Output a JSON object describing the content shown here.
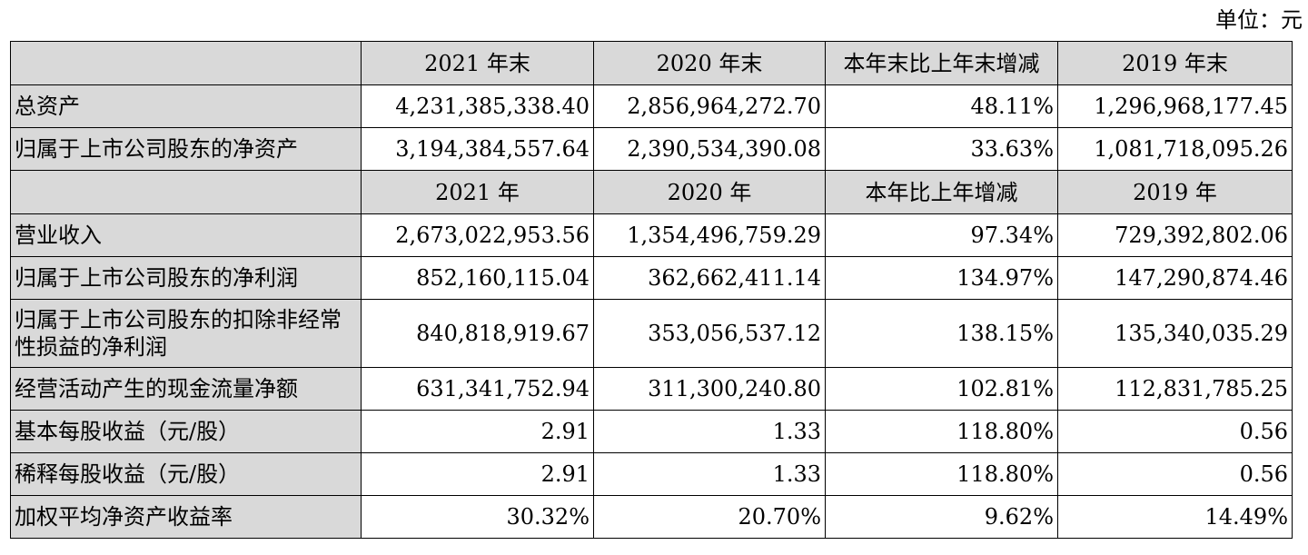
{
  "unit_label": "单位：元",
  "header1": [
    "",
    "2021 年末",
    "2020 年末",
    "本年末比上年末增减",
    "2019 年末"
  ],
  "header2": [
    "",
    "2021 年",
    "2020 年",
    "本年比上年增减",
    "2019 年"
  ],
  "rows": [
    {
      "label": "总资产",
      "v2021": "4,231,385,338.40",
      "v2020": "2,856,964,272.70",
      "change": "48.11%",
      "v2019": "1,296,968,177.45"
    },
    {
      "label": "归属于上市公司股东的净资产",
      "v2021": "3,194,384,557.64",
      "v2020": "2,390,534,390.08",
      "change": "33.63%",
      "v2019": "1,081,718,095.26"
    },
    {
      "label": "营业收入",
      "v2021": "2,673,022,953.56",
      "v2020": "1,354,496,759.29",
      "change": "97.34%",
      "v2019": "729,392,802.06"
    },
    {
      "label": "归属于上市公司股东的净利润",
      "v2021": "852,160,115.04",
      "v2020": "362,662,411.14",
      "change": "134.97%",
      "v2019": "147,290,874.46"
    },
    {
      "label": "归属于上市公司股东的扣除非经常性损益的净利润",
      "v2021": "840,818,919.67",
      "v2020": "353,056,537.12",
      "change": "138.15%",
      "v2019": "135,340,035.29"
    },
    {
      "label": "经营活动产生的现金流量净额",
      "v2021": "631,341,752.94",
      "v2020": "311,300,240.80",
      "change": "102.81%",
      "v2019": "112,831,785.25"
    },
    {
      "label": "基本每股收益（元/股）",
      "v2021": "2.91",
      "v2020": "1.33",
      "change": "118.80%",
      "v2019": "0.56"
    },
    {
      "label": "稀释每股收益（元/股）",
      "v2021": "2.91",
      "v2020": "1.33",
      "change": "118.80%",
      "v2019": "0.56"
    },
    {
      "label": "加权平均净资产收益率",
      "v2021": "30.32%",
      "v2020": "20.70%",
      "change": "9.62%",
      "v2019": "14.49%"
    }
  ]
}
